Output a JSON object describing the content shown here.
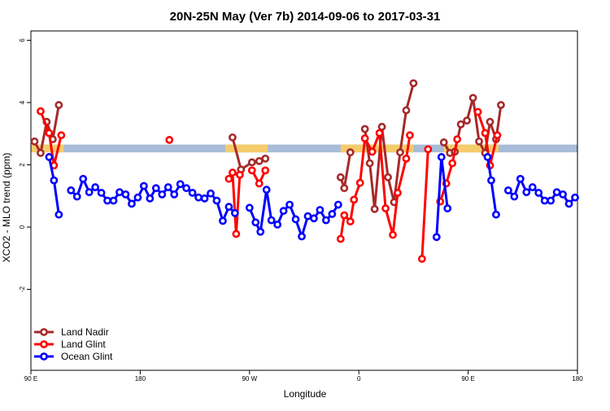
{
  "chart_data": {
    "type": "line",
    "title": "20N-25N May (Ver 7b)   2014-09-06 to 2017-03-31",
    "xlabel": "Longitude",
    "ylabel": "XCO2 - MLO trend (ppm)",
    "xlim": [
      0,
      450
    ],
    "ylim": [
      -4.6,
      6.3
    ],
    "xticks": [
      {
        "value": 0,
        "label": "90 E"
      },
      {
        "value": 90,
        "label": "180"
      },
      {
        "value": 180,
        "label": "90 W"
      },
      {
        "value": 270,
        "label": "0"
      },
      {
        "value": 360,
        "label": "90 E"
      },
      {
        "value": 450,
        "label": "180"
      }
    ],
    "yticks": [
      {
        "value": -2,
        "label": "-2"
      },
      {
        "value": 0,
        "label": "0"
      },
      {
        "value": 2,
        "label": "2"
      },
      {
        "value": 4,
        "label": "4"
      },
      {
        "value": 6,
        "label": "6"
      }
    ],
    "background_band": {
      "ymin": 2.4,
      "ymax": 2.65,
      "color": "#a8bcd8",
      "land_color": "#f5cc6a",
      "land_segments": [
        [
          0,
          27
        ],
        [
          160,
          195
        ],
        [
          255,
          315
        ],
        [
          340,
          385
        ]
      ]
    },
    "legend_position": "bottom-left",
    "series": [
      {
        "name": "Land Nadir",
        "color": "#a52a2a",
        "segments": [
          [
            [
              3,
              2.75
            ],
            [
              8,
              2.38
            ],
            [
              13,
              3.38
            ],
            [
              18,
              2.82
            ],
            [
              23,
              3.92
            ]
          ],
          [
            [
              166,
              2.88
            ],
            [
              173,
              1.85
            ],
            [
              182,
              2.08
            ],
            [
              188,
              2.12
            ],
            [
              193,
              2.2
            ]
          ],
          [
            [
              255,
              1.6
            ],
            [
              258,
              1.25
            ],
            [
              263,
              2.4
            ]
          ],
          [
            [
              275,
              3.15
            ],
            [
              279,
              2.05
            ],
            [
              283,
              0.58
            ],
            [
              289,
              3.22
            ],
            [
              294,
              1.6
            ],
            [
              299,
              0.8
            ],
            [
              304,
              2.4
            ],
            [
              309,
              3.75
            ],
            [
              315,
              4.62
            ]
          ],
          [
            [
              340,
              2.72
            ],
            [
              345,
              2.38
            ],
            [
              349,
              2.42
            ],
            [
              354,
              3.3
            ],
            [
              359,
              3.42
            ],
            [
              364,
              4.15
            ],
            [
              369,
              2.75
            ],
            [
              374,
              2.38
            ],
            [
              378,
              3.38
            ],
            [
              383,
              2.82
            ],
            [
              387,
              3.92
            ]
          ]
        ]
      },
      {
        "name": "Land Glint",
        "color": "#ff0000",
        "segments": [
          [
            [
              8,
              3.72
            ],
            [
              15,
              3.02
            ],
            [
              19,
              1.98
            ],
            [
              25,
              2.95
            ]
          ],
          [
            [
              114,
              2.8
            ]
          ],
          [
            [
              163,
              1.55
            ],
            [
              166,
              1.75
            ],
            [
              169,
              -0.22
            ],
            [
              172,
              1.68
            ]
          ],
          [
            [
              182,
              1.82
            ],
            [
              188,
              1.4
            ],
            [
              193,
              1.82
            ]
          ],
          [
            [
              255,
              -0.38
            ],
            [
              258,
              0.38
            ],
            [
              263,
              0.18
            ],
            [
              266,
              0.88
            ],
            [
              271,
              1.42
            ],
            [
              275,
              2.85
            ],
            [
              281,
              2.42
            ],
            [
              287,
              3.02
            ],
            [
              292,
              0.6
            ],
            [
              298,
              -0.25
            ],
            [
              302,
              1.1
            ],
            [
              309,
              2.2
            ],
            [
              312,
              2.95
            ]
          ],
          [
            [
              322,
              -1.02
            ],
            [
              327,
              2.5
            ]
          ],
          [
            [
              337,
              0.82
            ],
            [
              342,
              1.4
            ],
            [
              347,
              2.05
            ],
            [
              351,
              2.82
            ]
          ],
          [
            [
              368,
              3.7
            ],
            [
              374,
              3.02
            ],
            [
              378,
              1.98
            ],
            [
              384,
              2.95
            ]
          ]
        ]
      },
      {
        "name": "Ocean Glint",
        "color": "#0000ff",
        "segments": [
          [
            [
              15,
              2.25
            ],
            [
              19,
              1.5
            ],
            [
              23,
              0.4
            ]
          ],
          [
            [
              33,
              1.18
            ],
            [
              38,
              0.98
            ],
            [
              43,
              1.55
            ],
            [
              48,
              1.12
            ],
            [
              53,
              1.28
            ],
            [
              58,
              1.1
            ],
            [
              63,
              0.85
            ],
            [
              68,
              0.85
            ],
            [
              73,
              1.12
            ],
            [
              78,
              1.05
            ],
            [
              83,
              0.75
            ],
            [
              88,
              0.95
            ],
            [
              93,
              1.32
            ],
            [
              98,
              0.92
            ],
            [
              103,
              1.25
            ],
            [
              108,
              1.05
            ],
            [
              113,
              1.28
            ],
            [
              118,
              1.05
            ],
            [
              123,
              1.38
            ],
            [
              128,
              1.25
            ],
            [
              133,
              1.1
            ],
            [
              138,
              0.95
            ],
            [
              143,
              0.92
            ],
            [
              148,
              1.08
            ],
            [
              153,
              0.85
            ],
            [
              158,
              0.2
            ],
            [
              163,
              0.65
            ],
            [
              168,
              0.45
            ]
          ],
          [
            [
              180,
              0.62
            ],
            [
              185,
              0.15
            ],
            [
              189,
              -0.15
            ],
            [
              194,
              1.2
            ],
            [
              198,
              0.22
            ],
            [
              203,
              0.08
            ],
            [
              208,
              0.52
            ],
            [
              213,
              0.72
            ],
            [
              218,
              0.25
            ],
            [
              223,
              -0.3
            ],
            [
              228,
              0.35
            ],
            [
              233,
              0.28
            ],
            [
              238,
              0.55
            ],
            [
              243,
              0.22
            ],
            [
              248,
              0.42
            ],
            [
              253,
              0.72
            ]
          ],
          [
            [
              334,
              -0.32
            ],
            [
              338,
              2.25
            ],
            [
              343,
              0.6
            ]
          ],
          [
            [
              376,
              2.25
            ],
            [
              379,
              1.5
            ],
            [
              383,
              0.4
            ]
          ],
          [
            [
              393,
              1.18
            ],
            [
              398,
              0.98
            ],
            [
              403,
              1.55
            ],
            [
              408,
              1.12
            ],
            [
              413,
              1.28
            ],
            [
              418,
              1.1
            ],
            [
              423,
              0.85
            ],
            [
              428,
              0.85
            ],
            [
              433,
              1.12
            ],
            [
              438,
              1.05
            ],
            [
              443,
              0.75
            ],
            [
              448,
              0.95
            ]
          ]
        ]
      }
    ]
  }
}
